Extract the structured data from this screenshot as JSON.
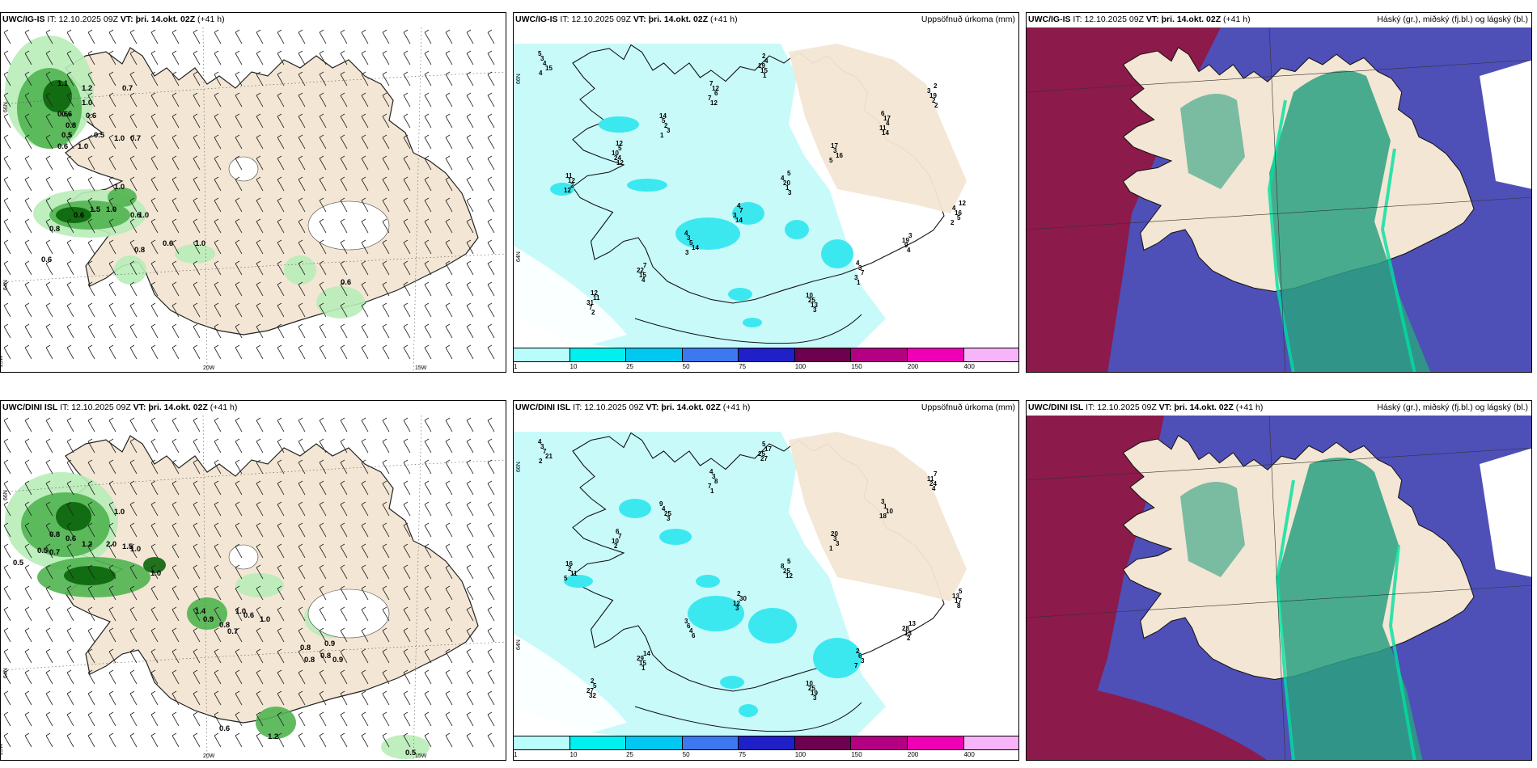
{
  "panels": [
    {
      "model": "UWC/IG-IS",
      "it_label": "IT:",
      "it_value": "12.10.2025 09Z",
      "vt_label": "VT: þri. 14.okt. 02Z",
      "lead": "(+41 h)",
      "right_title": "",
      "kind": "wind",
      "axis": {
        "lat1": "66N",
        "lat2": "64N",
        "lon1": "25W",
        "lon2": "20W",
        "lon3": "15W"
      },
      "values": [
        "1.1",
        "1.2",
        "0.7",
        "1.0",
        "0.6",
        "0.6",
        "0.8",
        "0.5",
        "0.5",
        "1.0",
        "0.7",
        "0.6",
        "1.0",
        "0.6",
        "1.0",
        "1.5",
        "1.0",
        "0.6",
        "0.6",
        "1.0",
        "0.8",
        "0.6",
        "0.8",
        "0.6",
        "1.0",
        "0.6"
      ]
    },
    {
      "model": "UWC/IG-IS",
      "it_label": "IT:",
      "it_value": "12.10.2025 09Z",
      "vt_label": "VT: þri. 14.okt. 02Z",
      "lead": "(+41 h)",
      "right_title": "Uppsöfnuð úrkoma (mm)",
      "kind": "precip",
      "axis": {
        "lat1": "66N",
        "lat2": "64N"
      },
      "values": [
        "5",
        "7",
        "6",
        "12",
        "5",
        "12",
        "4",
        "4",
        "12",
        "2",
        "2",
        "14",
        "17",
        "11",
        "4",
        "3",
        "7",
        "10",
        "3",
        "12",
        "17",
        "5",
        "4",
        "4",
        "3",
        "3",
        "11",
        "4",
        "3",
        "5",
        "3",
        "12",
        "7",
        "19",
        "22",
        "25",
        "4",
        "6",
        "4",
        "10",
        "20",
        "16",
        "5",
        "7",
        "31",
        "19",
        "19",
        "2",
        "16",
        "2",
        "3",
        "9",
        "15",
        "13",
        "15",
        "7",
        "11",
        "24",
        "1",
        "5",
        "14",
        "3",
        "7",
        "15",
        "2",
        "3",
        "5",
        "12",
        "14",
        "4",
        "4",
        "3",
        "4",
        "12",
        "14",
        "12",
        "3",
        "2",
        "3",
        "1",
        "2",
        "1",
        "2",
        "1"
      ]
    },
    {
      "model": "UWC/IG-IS",
      "it_label": "IT:",
      "it_value": "12.10.2025 09Z",
      "vt_label": "VT: þri. 14.okt. 02Z",
      "lead": "(+41 h)",
      "right_title": "Háský (gr.), miðský (fj.bl.) og lágský (bl.)",
      "kind": "cloud"
    },
    {
      "model": "UWC/DINI ISL",
      "it_label": "IT:",
      "it_value": "12.10.2025 09Z",
      "vt_label": "VT: þri. 14.okt. 02Z",
      "lead": "(+41 h)",
      "right_title": "",
      "kind": "wind",
      "axis": {
        "lat1": "66N",
        "lat2": "64N",
        "lon1": "25W",
        "lon2": "20W",
        "lon3": "15W"
      },
      "values": [
        "1.0",
        "0.8",
        "0.6",
        "0.5",
        "0.7",
        "0.5",
        "1.2",
        "2.0",
        "1.5",
        "1.0",
        "1.0",
        "1.4",
        "0.9",
        "0.8",
        "0.7",
        "0.6",
        "1.0",
        "0.8",
        "0.9",
        "0.8",
        "0.9",
        "0.8",
        "0.6",
        "1.2",
        "0.5",
        "1.0"
      ]
    },
    {
      "model": "UWC/DINI ISL",
      "it_label": "IT:",
      "it_value": "12.10.2025 09Z",
      "vt_label": "VT: þri. 14.okt. 02Z",
      "lead": "(+41 h)",
      "right_title": "Uppsöfnuð úrkoma (mm)",
      "kind": "precip",
      "axis": {
        "lat1": "66N",
        "lat2": "64N"
      },
      "values": [
        "4",
        "4",
        "3",
        "6",
        "5",
        "5",
        "3",
        "2",
        "2",
        "5",
        "7",
        "9",
        "20",
        "16",
        "2",
        "13",
        "14",
        "10",
        "3",
        "3",
        "1",
        "7",
        "8",
        "13",
        "6",
        "6",
        "5",
        "17",
        "11",
        "4",
        "3",
        "2",
        "30",
        "28",
        "29",
        "25",
        "7",
        "8",
        "10",
        "10",
        "25",
        "17",
        "4",
        "3",
        "27",
        "25",
        "24",
        "25",
        "3",
        "11",
        "12",
        "13",
        "15",
        "19",
        "21",
        "7",
        "18",
        "2",
        "12",
        "8",
        "6",
        "7",
        "32",
        "27",
        "4",
        "3",
        "1",
        "5",
        "3",
        "2",
        "1",
        "3",
        "2",
        "1"
      ]
    },
    {
      "model": "UWC/DINI ISL",
      "it_label": "IT:",
      "it_value": "12.10.2025 09Z",
      "vt_label": "VT: þri. 14.okt. 02Z",
      "lead": "(+41 h)",
      "right_title": "Háský (gr.), miðský (fj.bl.) og lágský (bl.)",
      "kind": "cloud"
    }
  ],
  "colorbar": {
    "labels": [
      "1",
      "10",
      "25",
      "50",
      "75",
      "100",
      "150",
      "200",
      "400"
    ],
    "colors": [
      "#b8fcfc",
      "#00f0f0",
      "#00c8f0",
      "#3c78f0",
      "#2020c8",
      "#6e0050",
      "#b40082",
      "#f000b4",
      "#f8b4f8"
    ]
  },
  "colors": {
    "land": "#f3e6d4",
    "sea": "#ffffff",
    "precip_light": "#c8fafa",
    "precip_mid": "#3ce8f0",
    "wind_green_light": "#b8ecb8",
    "wind_green": "#50b450",
    "wind_green_dark": "#0a640a",
    "cloud_high": "#8c1a4a",
    "cloud_mid": "#4f4fb8",
    "cloud_low": "#2aa080"
  }
}
